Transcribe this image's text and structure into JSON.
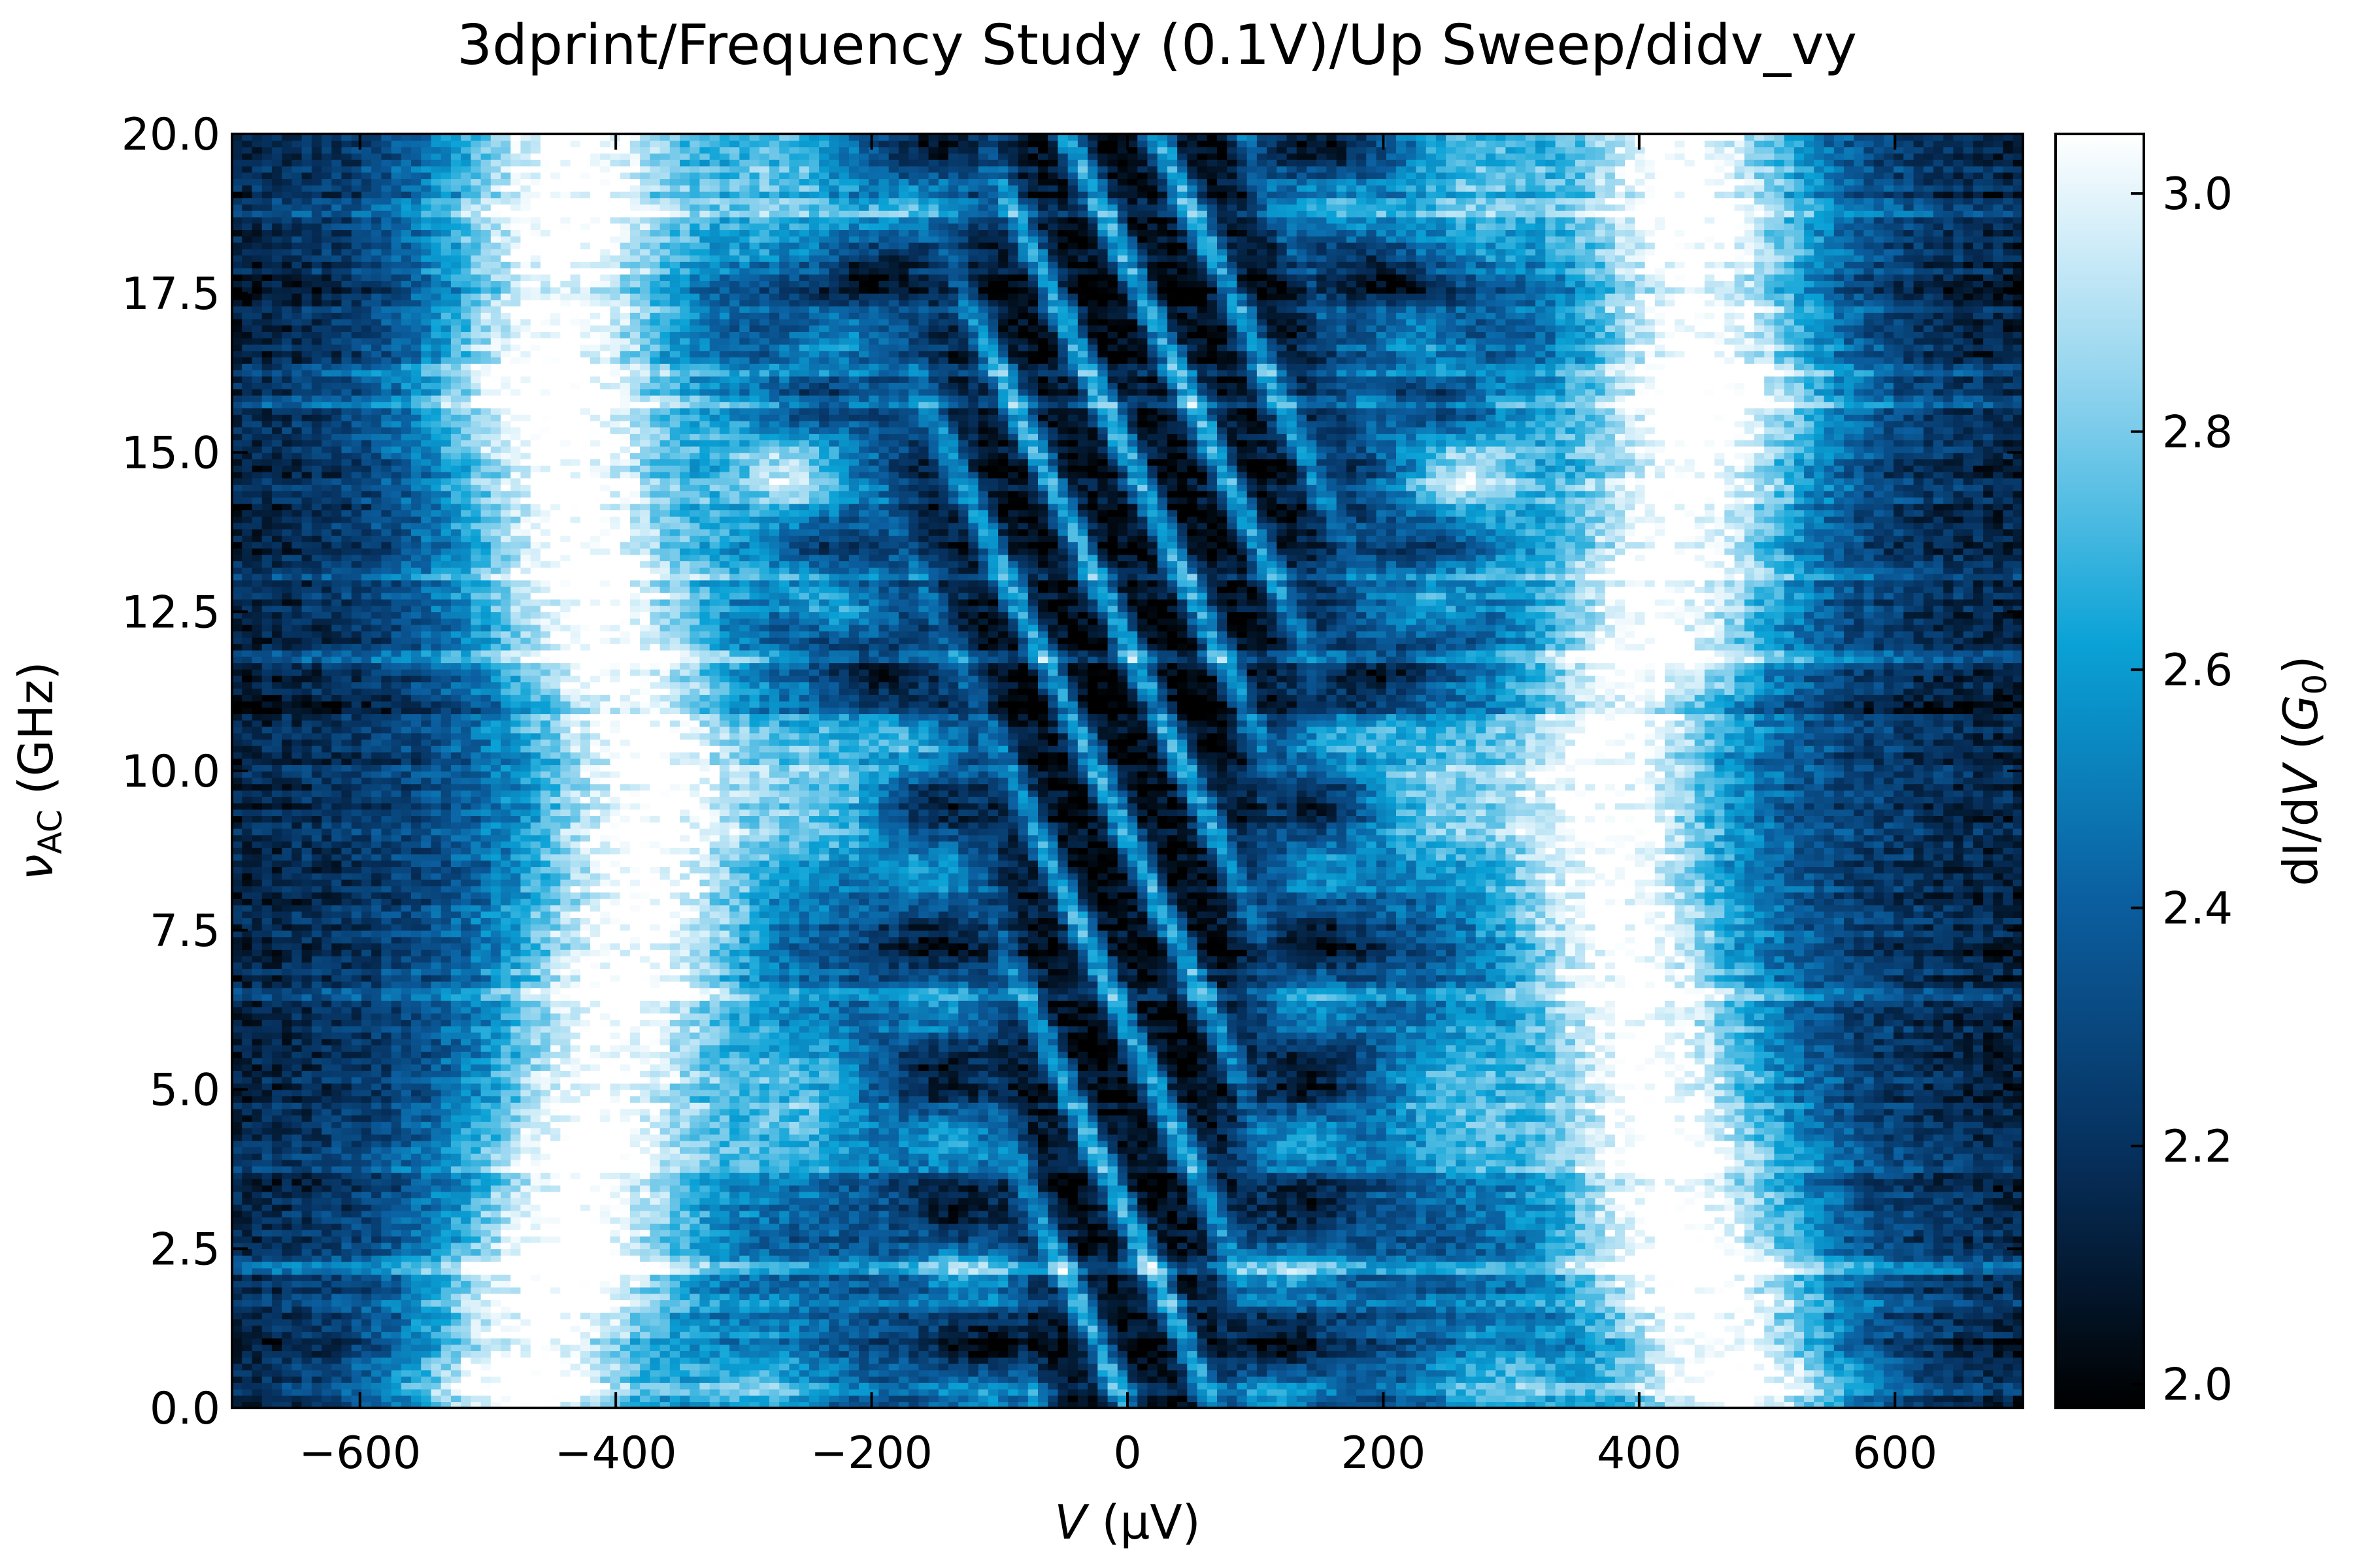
{
  "chart_data": {
    "type": "heatmap",
    "title": "3dprint/Frequency Study (0.1V)/Up Sweep/didv_vy",
    "xlabel": "V (µV)",
    "ylabel": "νAC (GHz)",
    "colorbar_label": "dI/dV (G0)",
    "xlim": [
      -700,
      700
    ],
    "ylim": [
      0,
      20
    ],
    "clim": [
      1.98,
      3.05
    ],
    "colormap": [
      "#000000",
      "#06305d",
      "#0b5fa0",
      "#0aa2d6",
      "#8fd3ee",
      "#ffffff"
    ],
    "x_ticks": [
      -600,
      -400,
      -200,
      0,
      200,
      400,
      600
    ],
    "y_ticks": [
      0.0,
      2.5,
      5.0,
      7.5,
      10.0,
      12.5,
      15.0,
      17.5,
      20.0
    ],
    "colorbar_ticks": [
      2.0,
      2.2,
      2.4,
      2.6,
      2.8,
      3.0
    ],
    "grid": false,
    "bright_lobe_voltage_uV": [
      {
        "nu_GHz": 0.5,
        "V": 470
      },
      {
        "nu_GHz": 2.0,
        "V": 440
      },
      {
        "nu_GHz": 4.0,
        "V": 420
      },
      {
        "nu_GHz": 6.0,
        "V": 400
      },
      {
        "nu_GHz": 8.0,
        "V": 380
      },
      {
        "nu_GHz": 10.0,
        "V": 370
      },
      {
        "nu_GHz": 12.0,
        "V": 410
      },
      {
        "nu_GHz": 14.0,
        "V": 430
      },
      {
        "nu_GHz": 16.0,
        "V": 450
      },
      {
        "nu_GHz": 18.0,
        "V": 440
      },
      {
        "nu_GHz": 20.0,
        "V": 430
      }
    ],
    "dark_center_halfwidth_uV": [
      {
        "nu_GHz": 1.0,
        "V": 60
      },
      {
        "nu_GHz": 3.0,
        "V": 70
      },
      {
        "nu_GHz": 5.0,
        "V": 75
      },
      {
        "nu_GHz": 7.5,
        "V": 80
      },
      {
        "nu_GHz": 10.0,
        "V": 80
      },
      {
        "nu_GHz": 12.5,
        "V": 120
      },
      {
        "nu_GHz": 15.0,
        "V": 140
      },
      {
        "nu_GHz": 17.5,
        "V": 110
      },
      {
        "nu_GHz": 19.5,
        "V": 80
      }
    ],
    "horizontal_line_features_GHz": [
      0.3,
      1.0,
      1.7,
      2.2,
      3.8,
      6.5,
      11.0,
      11.8,
      13.1,
      15.8,
      16.3,
      17.6,
      18.8
    ]
  }
}
